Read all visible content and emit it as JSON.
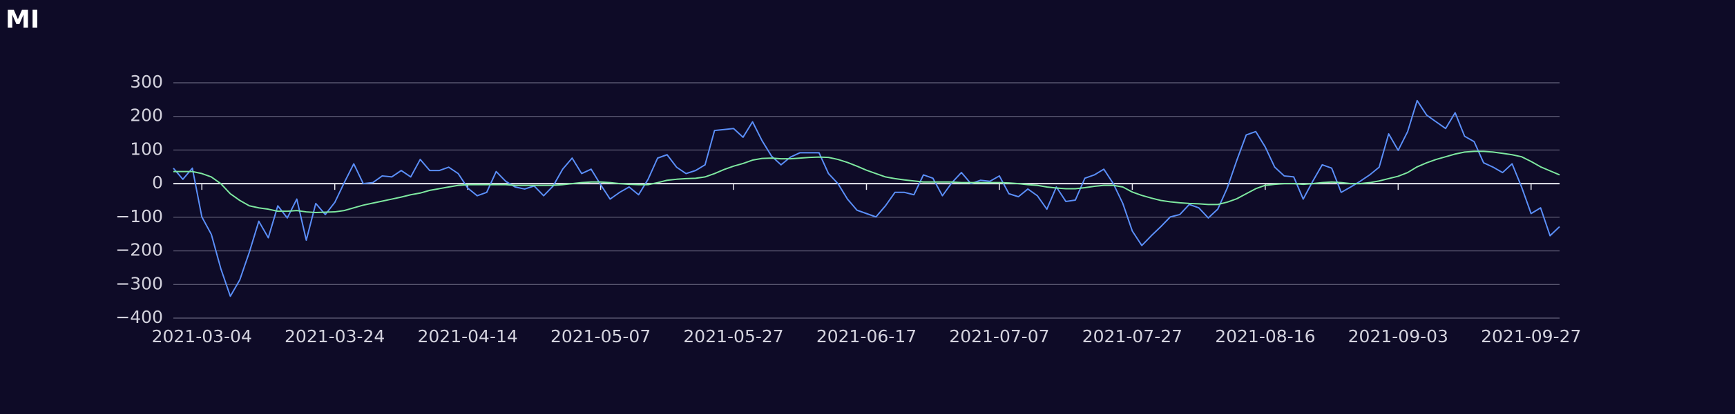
{
  "chart_data": {
    "type": "line",
    "title": "MI",
    "categories": [
      null,
      null,
      null,
      "2021-03-04",
      null,
      null,
      null,
      null,
      null,
      null,
      null,
      null,
      null,
      null,
      null,
      null,
      null,
      "2021-03-24",
      null,
      null,
      null,
      null,
      null,
      null,
      null,
      null,
      null,
      null,
      null,
      null,
      null,
      "2021-04-14",
      null,
      null,
      null,
      null,
      null,
      null,
      null,
      null,
      null,
      null,
      null,
      null,
      null,
      "2021-05-07",
      null,
      null,
      null,
      null,
      null,
      null,
      null,
      null,
      null,
      null,
      null,
      null,
      null,
      "2021-05-27",
      null,
      null,
      null,
      null,
      null,
      null,
      null,
      null,
      null,
      null,
      null,
      null,
      null,
      "2021-06-17",
      null,
      null,
      null,
      null,
      null,
      null,
      null,
      null,
      null,
      null,
      null,
      null,
      null,
      "2021-07-07",
      null,
      null,
      null,
      null,
      null,
      null,
      null,
      null,
      null,
      null,
      null,
      null,
      null,
      "2021-07-27",
      null,
      null,
      null,
      null,
      null,
      null,
      null,
      null,
      null,
      null,
      null,
      null,
      null,
      "2021-08-16",
      null,
      null,
      null,
      null,
      null,
      null,
      null,
      null,
      null,
      null,
      null,
      null,
      null,
      "2021-09-03",
      null,
      null,
      null,
      null,
      null,
      null,
      null,
      null,
      null,
      null,
      null,
      null,
      null,
      "2021-09-27",
      null,
      null,
      null
    ],
    "series": [
      {
        "color": "#5b8ff9",
        "values": [
          46,
          13,
          46,
          -99,
          -151,
          -253,
          -335,
          -286,
          -204,
          -112,
          -161,
          -66,
          -102,
          -46,
          -168,
          -59,
          -92,
          -56,
          3,
          59,
          0,
          3,
          23,
          20,
          39,
          20,
          72,
          39,
          39,
          49,
          30,
          -13,
          -36,
          -26,
          36,
          7,
          -10,
          -16,
          -7,
          -36,
          -7,
          43,
          76,
          30,
          43,
          -3,
          -46,
          -26,
          -10,
          -33,
          13,
          76,
          86,
          49,
          30,
          39,
          56,
          158,
          161,
          164,
          138,
          184,
          128,
          82,
          56,
          79,
          92,
          92,
          92,
          30,
          0,
          -46,
          -79,
          -89,
          -99,
          -66,
          -26,
          -26,
          -33,
          26,
          16,
          -36,
          3,
          33,
          0,
          10,
          7,
          23,
          -30,
          -39,
          -16,
          -36,
          -76,
          -10,
          -53,
          -49,
          16,
          26,
          43,
          0,
          -59,
          -141,
          -184,
          -155,
          -128,
          -99,
          -92,
          -62,
          -72,
          -102,
          -76,
          -13,
          69,
          145,
          155,
          109,
          49,
          23,
          20,
          -46,
          7,
          56,
          46,
          -26,
          -10,
          7,
          26,
          49,
          148,
          99,
          155,
          247,
          204,
          184,
          164,
          211,
          141,
          125,
          62,
          49,
          33,
          59,
          -10,
          -89,
          -72,
          -155,
          -128
        ]
      },
      {
        "color": "#7ee8a0",
        "values": [
          36,
          36,
          36,
          30,
          20,
          0,
          -30,
          -50,
          -66,
          -72,
          -76,
          -82,
          -82,
          -80,
          -84,
          -86,
          -85,
          -84,
          -80,
          -72,
          -64,
          -58,
          -52,
          -46,
          -40,
          -33,
          -28,
          -20,
          -15,
          -10,
          -5,
          -3,
          -3,
          -3,
          -3,
          -3,
          -5,
          -5,
          -5,
          -5,
          -5,
          -3,
          0,
          3,
          5,
          5,
          3,
          0,
          -2,
          -3,
          -3,
          3,
          10,
          13,
          15,
          16,
          20,
          30,
          42,
          52,
          60,
          70,
          75,
          76,
          74,
          74,
          76,
          78,
          79,
          78,
          72,
          63,
          52,
          40,
          30,
          20,
          15,
          11,
          8,
          5,
          5,
          5,
          5,
          3,
          3,
          3,
          3,
          3,
          2,
          0,
          -3,
          -5,
          -10,
          -13,
          -15,
          -15,
          -12,
          -8,
          -5,
          -5,
          -10,
          -25,
          -35,
          -43,
          -50,
          -54,
          -57,
          -59,
          -60,
          -62,
          -62,
          -55,
          -45,
          -30,
          -15,
          -5,
          -2,
          0,
          0,
          -2,
          0,
          3,
          5,
          3,
          0,
          0,
          3,
          8,
          15,
          22,
          33,
          50,
          62,
          72,
          80,
          88,
          94,
          96,
          96,
          94,
          90,
          86,
          80,
          66,
          50,
          38,
          26
        ]
      }
    ],
    "ylim": [
      -400,
      300
    ],
    "yticks": [
      300,
      200,
      100,
      0,
      {
        "value": -100,
        "label": "−100"
      },
      {
        "value": -200,
        "label": "−200"
      },
      {
        "value": -300,
        "label": "−300"
      },
      {
        "value": -400,
        "label": "−400"
      }
    ],
    "grid": true
  }
}
